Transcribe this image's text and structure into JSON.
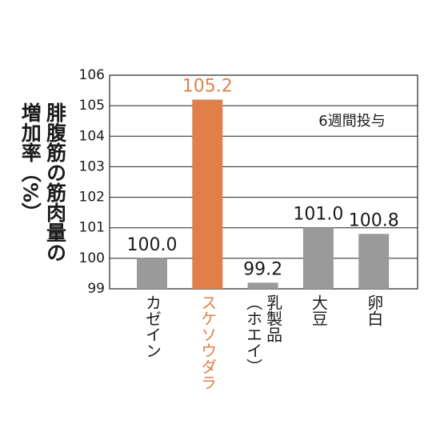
{
  "chart_data": {
    "type": "bar",
    "y_label": "腓腹筋の筋肉量の増加率（%）",
    "annotation": "6週間投与",
    "categories": [
      "カゼイン",
      "スケソウダラ",
      "乳製品\n（ホエイ）",
      "大豆",
      "卵白"
    ],
    "values": [
      100.0,
      105.2,
      99.2,
      101.0,
      100.8
    ],
    "value_labels": [
      "100.0",
      "105.2",
      "99.2",
      "101.0",
      "100.8"
    ],
    "colors": [
      "#9a9a9a",
      "#e07f4a",
      "#9a9a9a",
      "#9a9a9a",
      "#9a9a9a"
    ],
    "label_colors": [
      "#1a1a1a",
      "#e07f4a",
      "#1a1a1a",
      "#1a1a1a",
      "#1a1a1a"
    ],
    "ylim": [
      99,
      106
    ],
    "yticks": [
      99,
      100,
      101,
      102,
      103,
      104,
      105,
      106
    ],
    "grid": true
  }
}
